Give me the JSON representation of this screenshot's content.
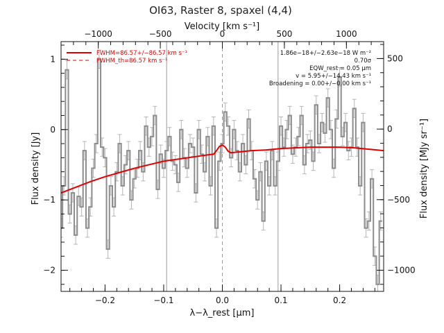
{
  "chart_data": {
    "type": "line",
    "title": "OI63, Raster 8, spaxel (4,4)",
    "xlabel": "λ−λ_rest [μm]",
    "ylabel": "Flux density [Jy]",
    "top_xlabel": "Velocity [km s⁻¹]",
    "right_ylabel": "Flux density [MJy sr⁻¹]",
    "xlim": [
      -0.275,
      0.275
    ],
    "ylim": [
      -2.3,
      1.25
    ],
    "top_xlim": [
      -1300,
      1300
    ],
    "right_ylim": [
      -1150,
      620
    ],
    "x_ticks": [
      -0.2,
      -0.1,
      0.0,
      0.1,
      0.2
    ],
    "x_tick_labels": [
      "−0.2",
      "−0.1",
      "0.0",
      "0.1",
      "0.2"
    ],
    "y_ticks": [
      -2,
      -1,
      0,
      1
    ],
    "y_tick_labels": [
      "−2",
      "−1",
      "0",
      "1"
    ],
    "top_ticks": [
      -1000,
      -500,
      0,
      500,
      1000
    ],
    "top_tick_labels": [
      "−1000",
      "−500",
      "0",
      "500",
      "1000"
    ],
    "right_ticks": [
      -1000,
      -500,
      0,
      500
    ],
    "right_tick_labels": [
      "−1000",
      "−500",
      "0",
      "500"
    ],
    "vlines": [
      -0.095,
      0.095
    ],
    "center_line": 0.0,
    "grid": false,
    "legend_position": "top-left",
    "legend": [
      {
        "label": "FWHM=86.57+/−86.57 km s⁻¹",
        "style": "solid",
        "color": "#e00000"
      },
      {
        "label": "FWHM_th=86.57 km s⁻¹",
        "style": "dashed",
        "color": "#e00000"
      }
    ],
    "annotations": [
      "1.86e−18+/−2.63e−18 W m⁻²",
      "0.70σ",
      "EQW_rest = 0.05 μm",
      "v = 5.95+/−14.43 km s⁻¹",
      "Broadening = 0.00+/−0.00 km s⁻¹"
    ],
    "series": [
      {
        "name": "data",
        "style": "step",
        "color": "#8c8c8c",
        "error": 0.13,
        "x": [
          -0.275,
          -0.27,
          -0.265,
          -0.26,
          -0.255,
          -0.25,
          -0.245,
          -0.24,
          -0.235,
          -0.23,
          -0.225,
          -0.22,
          -0.215,
          -0.21,
          -0.205,
          -0.2,
          -0.195,
          -0.19,
          -0.185,
          -0.18,
          -0.175,
          -0.17,
          -0.165,
          -0.16,
          -0.155,
          -0.15,
          -0.145,
          -0.14,
          -0.135,
          -0.13,
          -0.125,
          -0.12,
          -0.115,
          -0.11,
          -0.105,
          -0.1,
          -0.095,
          -0.09,
          -0.085,
          -0.08,
          -0.075,
          -0.07,
          -0.065,
          -0.06,
          -0.055,
          -0.05,
          -0.045,
          -0.04,
          -0.035,
          -0.03,
          -0.025,
          -0.02,
          -0.015,
          -0.01,
          -0.005,
          0.0,
          0.005,
          0.01,
          0.015,
          0.02,
          0.025,
          0.03,
          0.035,
          0.04,
          0.045,
          0.05,
          0.055,
          0.06,
          0.065,
          0.07,
          0.075,
          0.08,
          0.085,
          0.09,
          0.095,
          0.1,
          0.105,
          0.11,
          0.115,
          0.12,
          0.125,
          0.13,
          0.135,
          0.14,
          0.145,
          0.15,
          0.155,
          0.16,
          0.165,
          0.17,
          0.175,
          0.18,
          0.185,
          0.19,
          0.195,
          0.2,
          0.205,
          0.21,
          0.215,
          0.22,
          0.225,
          0.23,
          0.235,
          0.24,
          0.245,
          0.25,
          0.255,
          0.26,
          0.265,
          0.27
        ],
        "y": [
          -1.4,
          -0.8,
          0.85,
          -1.2,
          -0.9,
          -1.5,
          -0.95,
          -1.1,
          -0.3,
          -1.4,
          -1.1,
          -0.55,
          -0.2,
          1.0,
          -0.25,
          -0.4,
          -1.7,
          -0.8,
          -1.1,
          -0.6,
          -0.2,
          -0.8,
          -0.5,
          -0.3,
          -1.0,
          -0.7,
          -0.55,
          -0.3,
          -0.6,
          0.05,
          -0.25,
          -0.1,
          0.2,
          -0.85,
          -0.35,
          -0.55,
          -0.3,
          -0.1,
          -0.45,
          -0.5,
          -0.75,
          0.0,
          -0.4,
          -0.55,
          -0.2,
          -0.25,
          -0.9,
          0.0,
          -0.35,
          -0.6,
          -0.1,
          -0.8,
          0.05,
          -1.4,
          -0.45,
          -0.2,
          0.25,
          0.05,
          -0.4,
          0.0,
          -0.3,
          -0.6,
          -0.2,
          -0.5,
          0.15,
          -0.3,
          -0.7,
          -1.0,
          -0.6,
          -1.3,
          -0.45,
          -0.8,
          -0.3,
          -0.8,
          -0.45,
          0.05,
          -0.25,
          0.0,
          0.2,
          -0.35,
          -0.25,
          -0.1,
          0.2,
          -0.5,
          -0.2,
          -0.15,
          -0.45,
          0.35,
          -0.2,
          0.1,
          -0.05,
          0.45,
          0.0,
          -0.55,
          0.15,
          0.75,
          -0.1,
          0.1,
          -0.3,
          -0.25,
          0.3,
          -0.25,
          -0.8,
          0.1,
          -1.4,
          -1.3,
          -0.7,
          -1.8,
          -2.2,
          -1.3
        ]
      },
      {
        "name": "model",
        "style": "line",
        "color": "#e00000",
        "x": [
          -0.275,
          -0.25,
          -0.225,
          -0.2,
          -0.175,
          -0.15,
          -0.125,
          -0.1,
          -0.075,
          -0.05,
          -0.025,
          -0.015,
          -0.01,
          -0.005,
          0.0,
          0.005,
          0.01,
          0.015,
          0.025,
          0.05,
          0.075,
          0.1,
          0.125,
          0.15,
          0.175,
          0.2,
          0.225,
          0.25,
          0.275
        ],
        "y": [
          -0.9,
          -0.82,
          -0.74,
          -0.67,
          -0.61,
          -0.55,
          -0.5,
          -0.45,
          -0.42,
          -0.39,
          -0.36,
          -0.35,
          -0.3,
          -0.24,
          -0.22,
          -0.25,
          -0.31,
          -0.33,
          -0.32,
          -0.3,
          -0.29,
          -0.27,
          -0.26,
          -0.25,
          -0.25,
          -0.25,
          -0.26,
          -0.28,
          -0.3
        ]
      }
    ]
  }
}
